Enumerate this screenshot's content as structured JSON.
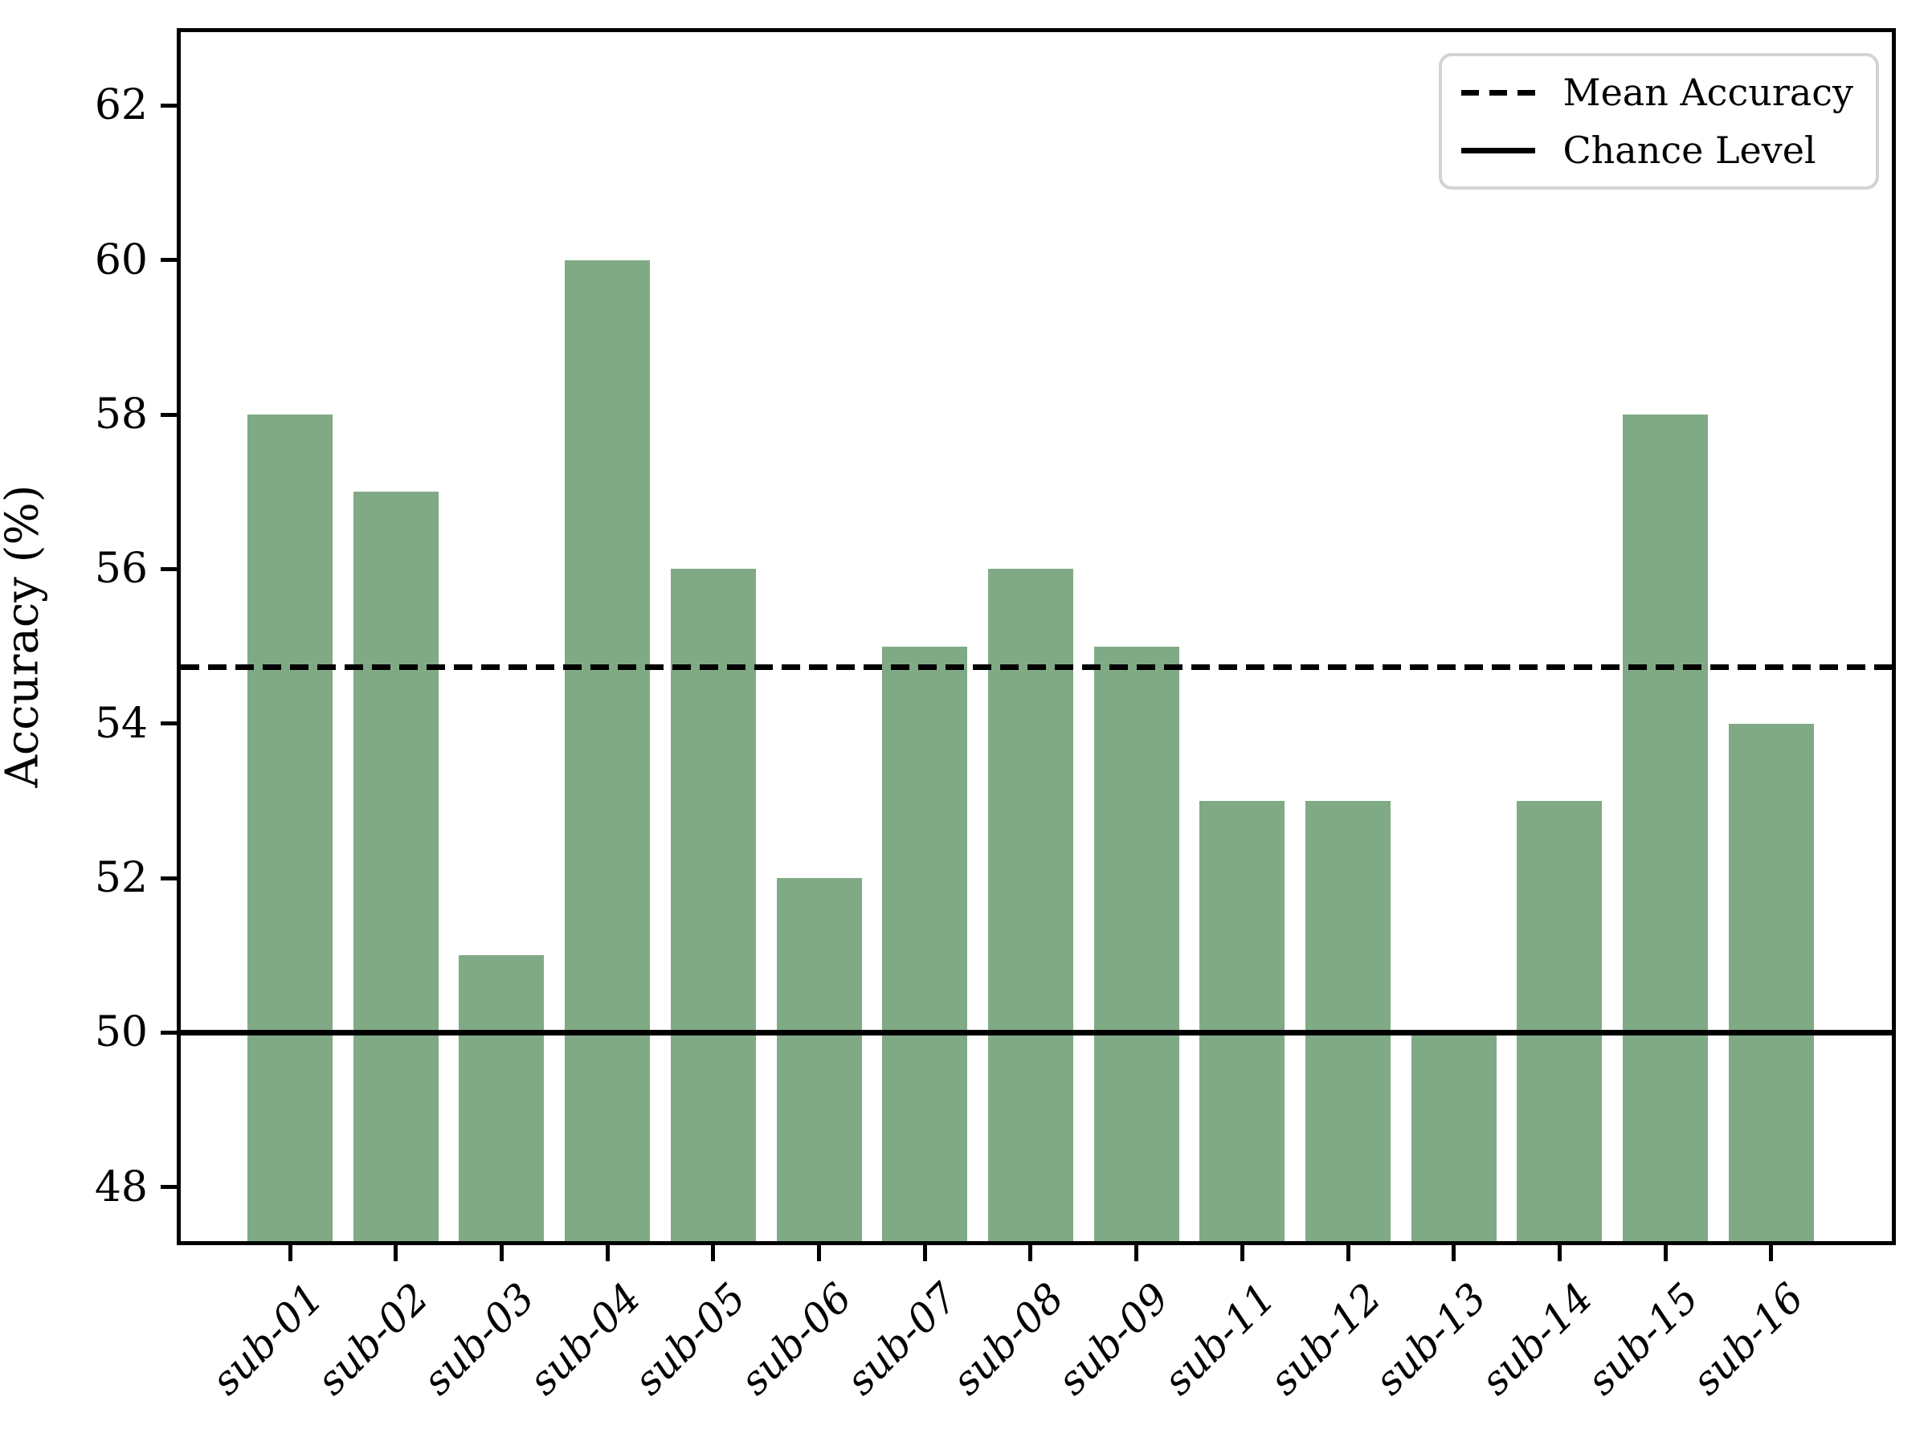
{
  "chart_data": {
    "type": "bar",
    "title": "",
    "xlabel": "",
    "ylabel": "Accuracy (%)",
    "categories": [
      "sub-01",
      "sub-02",
      "sub-03",
      "sub-04",
      "sub-05",
      "sub-06",
      "sub-07",
      "sub-08",
      "sub-09",
      "sub-11",
      "sub-12",
      "sub-13",
      "sub-14",
      "sub-15",
      "sub-16"
    ],
    "values": [
      58,
      57,
      51,
      60,
      56,
      52,
      55,
      56,
      55,
      53,
      53,
      50,
      53,
      58,
      54
    ],
    "yticks": [
      48,
      50,
      52,
      54,
      56,
      58,
      60,
      62
    ],
    "ylim": [
      47.3,
      62.95
    ],
    "mean_accuracy": 54.73,
    "chance_level": 50,
    "grid": false,
    "legend": {
      "position": "top-right",
      "items": [
        {
          "label": "Mean Accuracy",
          "line_style": "dashed"
        },
        {
          "label": "Chance Level",
          "line_style": "solid"
        }
      ]
    },
    "colors": {
      "bar": "#80aa85",
      "line": "#000000",
      "legend_border": "#d3d3d3",
      "background": "#ffffff"
    }
  }
}
